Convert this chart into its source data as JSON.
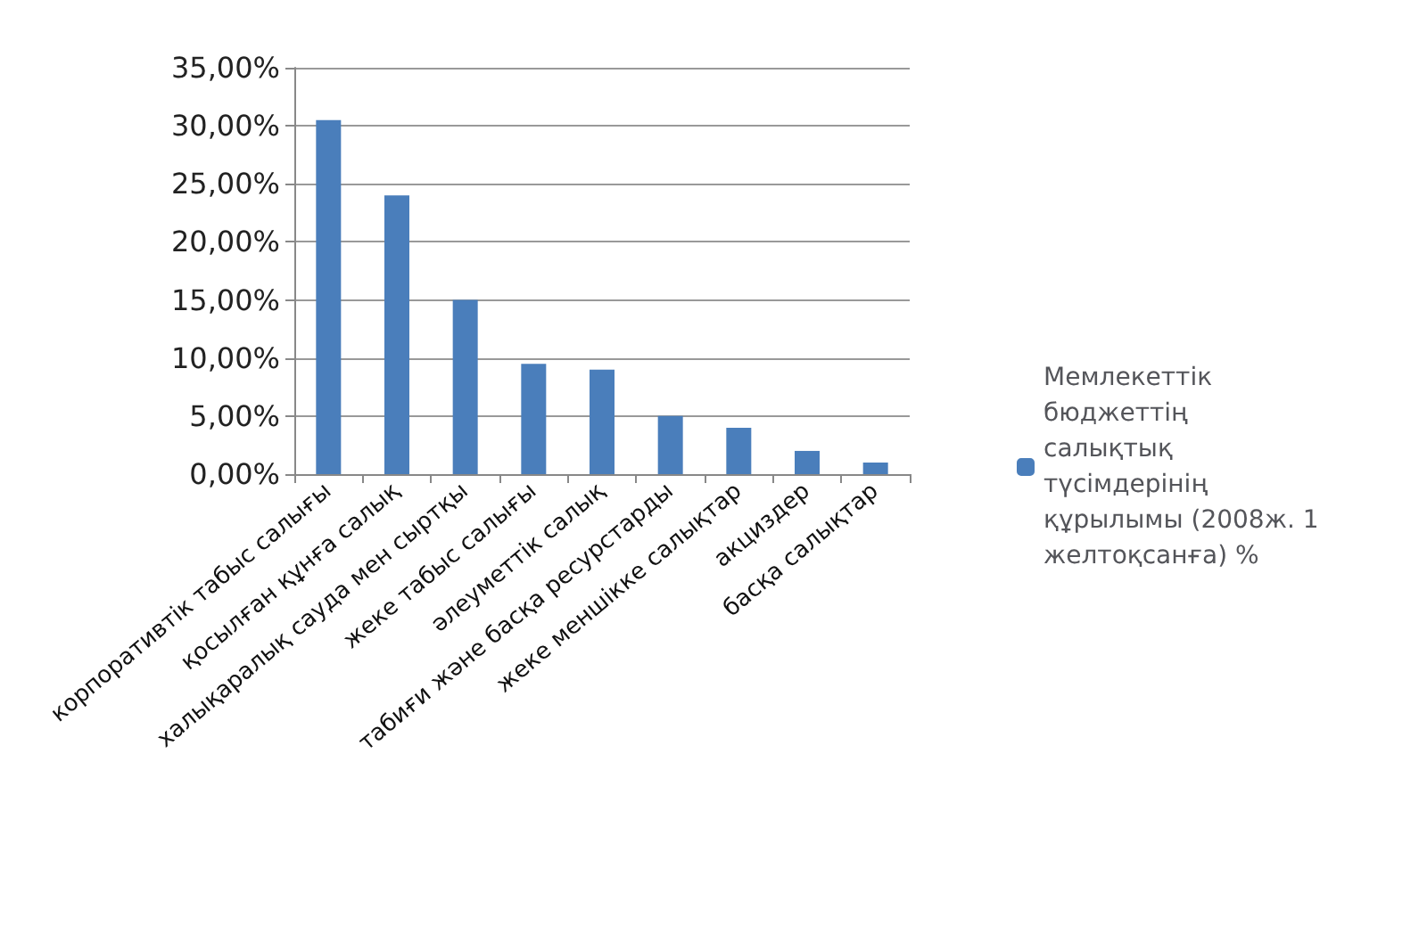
{
  "chart_data": {
    "type": "bar",
    "categories": [
      "корпоративтік табыс салығы",
      "қосылған құнға салық",
      "халықаралық сауда мен сыртқы",
      "жеке табыс салығы",
      "әлеуметтік салық",
      "табиғи және басқа ресурстарды",
      "жеке меншікке салықтар",
      "акциздер",
      "басқа салықтар"
    ],
    "series": [
      {
        "name": "Мемлекеттік бюджеттің салықтық түсімдерінің құрылымы (2008ж. 1 желтоқсанға) %",
        "color": "#4a7ebb",
        "values": [
          30.5,
          24,
          15,
          9.5,
          9,
          5,
          4,
          2,
          1
        ]
      }
    ],
    "ylim": [
      0,
      35
    ],
    "yticks": [
      {
        "value": 0,
        "label": "0,00%"
      },
      {
        "value": 5,
        "label": "5,00%"
      },
      {
        "value": 10,
        "label": "10,00%"
      },
      {
        "value": 15,
        "label": "15,00%"
      },
      {
        "value": 20,
        "label": "20,00%"
      },
      {
        "value": 25,
        "label": "25,00%"
      },
      {
        "value": 30,
        "label": "30,00%"
      },
      {
        "value": 35,
        "label": "35,00%"
      }
    ],
    "grid": "y",
    "legend": "right"
  }
}
